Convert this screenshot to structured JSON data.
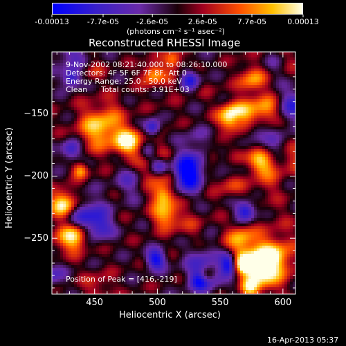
{
  "colorbar": {
    "tick_labels": [
      "-0.00013",
      "-7.7e-05",
      "-2.6e-05",
      "2.6e-05",
      "7.7e-05",
      "0.00013"
    ],
    "tick_values": [
      -0.00013,
      -7.7e-05,
      -2.6e-05,
      2.6e-05,
      7.7e-05,
      0.00013
    ],
    "units_label": "(photons cm⁻² s⁻¹ asec⁻²)",
    "range": [
      -0.00013,
      0.00013
    ],
    "colors": [
      "#0000ff",
      "#6a2aa8",
      "#a00020",
      "#ff6000",
      "#ffd000",
      "#ffffff"
    ]
  },
  "chart_data": {
    "type": "heatmap",
    "title": "Reconstructed RHESSI Image",
    "xlabel": "Heliocentric X (arcsec)",
    "ylabel": "Heliocentric Y (arcsec)",
    "xlim": [
      416,
      610
    ],
    "ylim": [
      -295,
      -100
    ],
    "x_ticks": [
      450,
      500,
      550,
      600
    ],
    "y_ticks": [
      -150,
      -200,
      -250
    ],
    "x_tick_labels": [
      "450",
      "500",
      "550",
      "600"
    ],
    "y_tick_labels": [
      "-150",
      "-200",
      "-250"
    ],
    "annotations": {
      "time_range": "9-Nov-2002 08:21:40.000 to 08:26:10.000",
      "detectors": "Detectors: 4F 5F 6F 7F 8F, Att 0",
      "energy_range": "Energy Range: 25.0 - 50.0 keV",
      "method": "Clean",
      "total_counts": "Total counts: 3.91E+03",
      "peak_position": "Position of Peak = [416,-219]"
    },
    "peak": {
      "x": 416,
      "y": -219
    }
  },
  "footer": {
    "timestamp": "16-Apr-2013 05:37"
  }
}
